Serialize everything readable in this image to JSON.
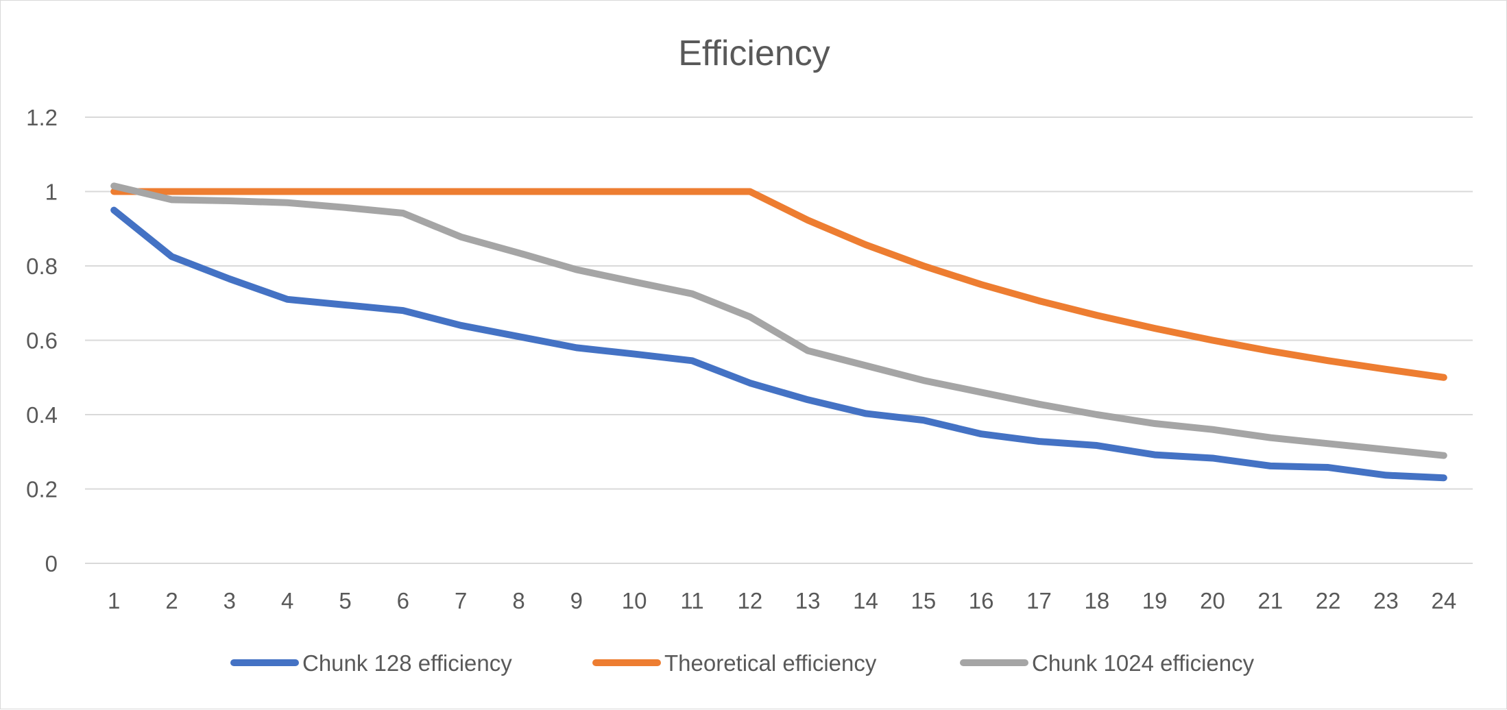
{
  "chart_data": {
    "type": "line",
    "title": "Efficiency",
    "xlabel": "",
    "ylabel": "",
    "x": [
      1,
      2,
      3,
      4,
      5,
      6,
      7,
      8,
      9,
      10,
      11,
      12,
      13,
      14,
      15,
      16,
      17,
      18,
      19,
      20,
      21,
      22,
      23,
      24
    ],
    "x_tick_labels": [
      "1",
      "2",
      "3",
      "4",
      "5",
      "6",
      "7",
      "8",
      "9",
      "10",
      "11",
      "12",
      "13",
      "14",
      "15",
      "16",
      "17",
      "18",
      "19",
      "20",
      "21",
      "22",
      "23",
      "24"
    ],
    "ylim": [
      0,
      1.2
    ],
    "y_ticks": [
      0,
      0.2,
      0.4,
      0.6,
      0.8,
      1,
      1.2
    ],
    "y_tick_labels": [
      "0",
      "0.2",
      "0.4",
      "0.6",
      "0.8",
      "1",
      "1.2"
    ],
    "grid": true,
    "legend_position": "bottom",
    "series": [
      {
        "name": "Chunk 128 efficiency",
        "color": "#4472c4",
        "values": [
          0.95,
          0.825,
          0.765,
          0.71,
          0.695,
          0.68,
          0.64,
          0.61,
          0.58,
          0.563,
          0.545,
          0.485,
          0.44,
          0.403,
          0.385,
          0.348,
          0.328,
          0.317,
          0.292,
          0.283,
          0.262,
          0.258,
          0.237,
          0.23
        ]
      },
      {
        "name": "Theoretical efficiency",
        "color": "#ed7d31",
        "values": [
          1,
          1,
          1,
          1,
          1,
          1,
          1,
          1,
          1,
          1,
          1,
          1,
          0.923,
          0.857,
          0.8,
          0.75,
          0.706,
          0.667,
          0.632,
          0.6,
          0.571,
          0.545,
          0.522,
          0.5
        ]
      },
      {
        "name": "Chunk 1024 efficiency",
        "color": "#a5a5a5",
        "values": [
          1.015,
          0.978,
          0.975,
          0.97,
          0.957,
          0.942,
          0.878,
          0.835,
          0.79,
          0.757,
          0.725,
          0.663,
          0.572,
          0.532,
          0.492,
          0.46,
          0.428,
          0.4,
          0.376,
          0.36,
          0.338,
          0.322,
          0.306,
          0.29
        ]
      }
    ]
  }
}
